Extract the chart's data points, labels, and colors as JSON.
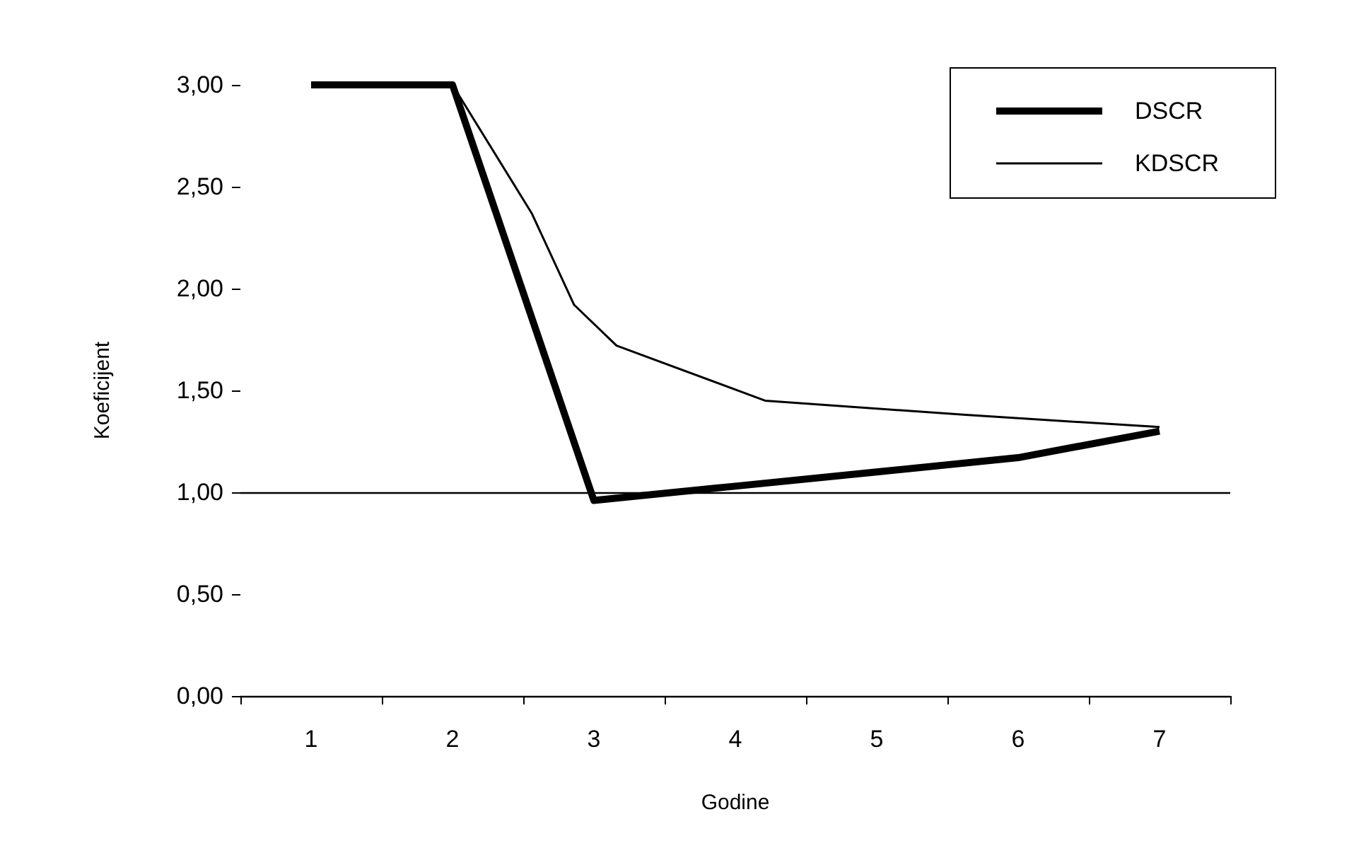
{
  "chart_data": {
    "type": "line",
    "xlabel": "Godine",
    "ylabel": "Koeficijent",
    "xlim": [
      0.5,
      7.5
    ],
    "xticks": [
      {
        "value": 0.5,
        "label": null
      },
      {
        "value": 1,
        "label": "1"
      },
      {
        "value": 1.5,
        "label": null
      },
      {
        "value": 2,
        "label": "2"
      },
      {
        "value": 2.5,
        "label": null
      },
      {
        "value": 3,
        "label": "3"
      },
      {
        "value": 3.5,
        "label": null
      },
      {
        "value": 4,
        "label": "4"
      },
      {
        "value": 4.5,
        "label": null
      },
      {
        "value": 5,
        "label": "5"
      },
      {
        "value": 5.5,
        "label": null
      },
      {
        "value": 6,
        "label": "6"
      },
      {
        "value": 6.5,
        "label": null
      },
      {
        "value": 7,
        "label": "7"
      },
      {
        "value": 7.5,
        "label": null
      }
    ],
    "ylim": [
      0,
      3
    ],
    "yticks": [
      {
        "value": 0,
        "label": "0,00"
      },
      {
        "value": 0.5,
        "label": "0,50"
      },
      {
        "value": 1,
        "label": "1,00"
      },
      {
        "value": 1.5,
        "label": "1,50"
      },
      {
        "value": 2,
        "label": "2,00"
      },
      {
        "value": 2.5,
        "label": "2,50"
      },
      {
        "value": 3,
        "label": "3,00"
      }
    ],
    "series": [
      {
        "name": "DSCR",
        "color": "#000000",
        "x": [
          1,
          2,
          3,
          4,
          5,
          6,
          7
        ],
        "values": [
          3.0,
          3.0,
          0.96,
          1.03,
          1.1,
          1.17,
          1.3
        ]
      },
      {
        "name": "KDSCR",
        "color": "#000000",
        "x": [
          2,
          2.56,
          2.86,
          3.16,
          4.21,
          5.63,
          7
        ],
        "values": [
          3.0,
          2.37,
          1.92,
          1.72,
          1.45,
          1.38,
          1.32
        ]
      }
    ],
    "ref_lines": [
      {
        "axis": "y",
        "value": 1,
        "color": "#000000"
      }
    ],
    "legend": "top right",
    "grid": false,
    "marker": "none",
    "line_style": "solid"
  }
}
